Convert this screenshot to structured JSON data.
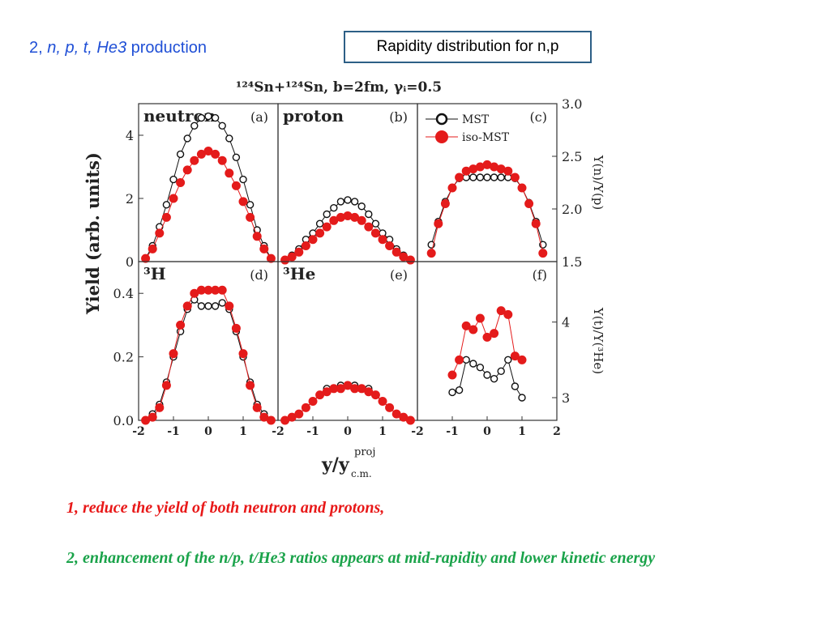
{
  "slide": {
    "title_parts": [
      {
        "text": "2, ",
        "italic": false
      },
      {
        "text": "n, p, t, He3",
        "italic": true
      },
      {
        "text": " production",
        "italic": false
      }
    ],
    "boxed_title": "Rapidity distribution for n,p",
    "notes": [
      "1,  reduce the yield of both neutron and protons,",
      "2,  enhancement of the n/p, t/He3 ratios appears at mid-rapidity and lower kinetic energy"
    ]
  },
  "figure": {
    "header": "¹²⁴Sn+¹²⁴Sn, b=2fm, γᵢ=0.5",
    "ylabel": "Yield (arb. units)",
    "xlabel": "y/y",
    "xlabel_sup": "proj",
    "xlabel_sub": "c.m.",
    "legend": [
      {
        "label": "MST",
        "style": "open"
      },
      {
        "label": "iso-MST",
        "style": "filled"
      }
    ],
    "colors": {
      "open": "#111111",
      "filled": "#e41b1b"
    }
  },
  "chart_data": [
    {
      "type": "scatter",
      "panel": "(a)",
      "name": "neutron",
      "xlim": [
        -2,
        2
      ],
      "ylim": [
        0,
        5
      ],
      "yticks": [
        0,
        2,
        4
      ],
      "ytick_labels": [
        "0",
        "2",
        "4"
      ],
      "axis_side": "left",
      "x": [
        -1.8,
        -1.6,
        -1.4,
        -1.2,
        -1.0,
        -0.8,
        -0.6,
        -0.4,
        -0.2,
        0.0,
        0.2,
        0.4,
        0.6,
        0.8,
        1.0,
        1.2,
        1.4,
        1.6,
        1.8
      ],
      "series": [
        {
          "name": "MST",
          "style": "open",
          "values": [
            0.1,
            0.5,
            1.1,
            1.8,
            2.6,
            3.4,
            3.9,
            4.3,
            4.55,
            4.6,
            4.55,
            4.3,
            3.9,
            3.3,
            2.6,
            1.8,
            1.0,
            0.5,
            0.1
          ]
        },
        {
          "name": "iso-MST",
          "style": "filled",
          "values": [
            0.1,
            0.4,
            0.9,
            1.4,
            2.0,
            2.5,
            2.9,
            3.2,
            3.4,
            3.5,
            3.4,
            3.2,
            2.8,
            2.4,
            1.9,
            1.4,
            0.8,
            0.4,
            0.1
          ]
        }
      ]
    },
    {
      "type": "scatter",
      "panel": "(b)",
      "name": "proton",
      "xlim": [
        -2,
        2
      ],
      "ylim": [
        0,
        5
      ],
      "axis_side": "none",
      "x": [
        -1.8,
        -1.6,
        -1.4,
        -1.2,
        -1.0,
        -0.8,
        -0.6,
        -0.4,
        -0.2,
        0.0,
        0.2,
        0.4,
        0.6,
        0.8,
        1.0,
        1.2,
        1.4,
        1.6,
        1.8
      ],
      "series": [
        {
          "name": "MST",
          "style": "open",
          "values": [
            0.05,
            0.2,
            0.4,
            0.7,
            0.9,
            1.2,
            1.5,
            1.7,
            1.9,
            1.95,
            1.9,
            1.75,
            1.5,
            1.2,
            0.9,
            0.7,
            0.4,
            0.2,
            0.05
          ]
        },
        {
          "name": "iso-MST",
          "style": "filled",
          "values": [
            0.05,
            0.15,
            0.3,
            0.5,
            0.7,
            0.9,
            1.1,
            1.3,
            1.4,
            1.45,
            1.4,
            1.3,
            1.1,
            0.9,
            0.7,
            0.5,
            0.3,
            0.15,
            0.05
          ]
        }
      ]
    },
    {
      "type": "scatter",
      "panel": "(c)",
      "xlim": [
        -2,
        2
      ],
      "ylim": [
        1.5,
        3.0
      ],
      "yticks": [
        1.5,
        2.0,
        2.5,
        3.0
      ],
      "ytick_labels": [
        "1.5",
        "2.0",
        "2.5",
        "3.0"
      ],
      "axis_side": "right",
      "ylabel": "Y(n)/Y(p)",
      "x": [
        -1.6,
        -1.4,
        -1.2,
        -1.0,
        -0.8,
        -0.6,
        -0.4,
        -0.2,
        0.0,
        0.2,
        0.4,
        0.6,
        0.8,
        1.0,
        1.2,
        1.4,
        1.6
      ],
      "series": [
        {
          "name": "MST",
          "style": "open",
          "values": [
            1.66,
            1.88,
            2.07,
            2.2,
            2.29,
            2.3,
            2.3,
            2.3,
            2.3,
            2.3,
            2.3,
            2.3,
            2.29,
            2.2,
            2.06,
            1.88,
            1.66
          ]
        },
        {
          "name": "iso-MST",
          "style": "filled",
          "values": [
            1.58,
            1.86,
            2.05,
            2.2,
            2.3,
            2.36,
            2.38,
            2.4,
            2.42,
            2.4,
            2.38,
            2.36,
            2.3,
            2.2,
            2.05,
            1.86,
            1.58
          ]
        }
      ]
    },
    {
      "type": "scatter",
      "panel": "(d)",
      "name": "³H",
      "xlim": [
        -2,
        2
      ],
      "ylim": [
        0,
        0.5
      ],
      "yticks": [
        0.0,
        0.2,
        0.4
      ],
      "ytick_labels": [
        "0.0",
        "0.2",
        "0.4"
      ],
      "axis_side": "left",
      "xticks": [
        -2,
        -1,
        0,
        1
      ],
      "xtick_labels": [
        "-2",
        "-1",
        "0",
        "1"
      ],
      "x": [
        -1.8,
        -1.6,
        -1.4,
        -1.2,
        -1.0,
        -0.8,
        -0.6,
        -0.4,
        -0.2,
        0.0,
        0.2,
        0.4,
        0.6,
        0.8,
        1.0,
        1.2,
        1.4,
        1.6,
        1.8
      ],
      "series": [
        {
          "name": "MST",
          "style": "open",
          "values": [
            0.0,
            0.02,
            0.05,
            0.12,
            0.2,
            0.28,
            0.35,
            0.38,
            0.36,
            0.36,
            0.36,
            0.37,
            0.35,
            0.28,
            0.2,
            0.12,
            0.05,
            0.02,
            0.0
          ]
        },
        {
          "name": "iso-MST",
          "style": "filled",
          "values": [
            0.0,
            0.01,
            0.04,
            0.11,
            0.21,
            0.3,
            0.36,
            0.4,
            0.41,
            0.41,
            0.41,
            0.41,
            0.36,
            0.29,
            0.21,
            0.11,
            0.04,
            0.01,
            0.0
          ]
        }
      ]
    },
    {
      "type": "scatter",
      "panel": "(e)",
      "name": "³He",
      "xlim": [
        -2,
        2
      ],
      "ylim": [
        0,
        0.5
      ],
      "axis_side": "none",
      "xticks": [
        -2,
        -1,
        0,
        1
      ],
      "xtick_labels": [
        "-2",
        "-1",
        "0",
        "1"
      ],
      "x": [
        -1.8,
        -1.6,
        -1.4,
        -1.2,
        -1.0,
        -0.8,
        -0.6,
        -0.4,
        -0.2,
        0.0,
        0.2,
        0.4,
        0.6,
        0.8,
        1.0,
        1.2,
        1.4,
        1.6,
        1.8
      ],
      "series": [
        {
          "name": "MST",
          "style": "open",
          "values": [
            0.0,
            0.01,
            0.02,
            0.04,
            0.06,
            0.08,
            0.1,
            0.1,
            0.11,
            0.11,
            0.11,
            0.1,
            0.1,
            0.08,
            0.06,
            0.04,
            0.02,
            0.01,
            0.0
          ]
        },
        {
          "name": "iso-MST",
          "style": "filled",
          "values": [
            0.0,
            0.01,
            0.02,
            0.04,
            0.06,
            0.08,
            0.09,
            0.1,
            0.1,
            0.11,
            0.1,
            0.1,
            0.09,
            0.08,
            0.06,
            0.04,
            0.02,
            0.01,
            0.0
          ]
        }
      ]
    },
    {
      "type": "scatter",
      "panel": "(f)",
      "xlim": [
        -2,
        2
      ],
      "ylim": [
        2.7,
        4.8
      ],
      "yticks": [
        3,
        4
      ],
      "ytick_labels": [
        "3",
        "4"
      ],
      "axis_side": "right",
      "ylabel": "Y(t)/Y(³He)",
      "xticks": [
        -2,
        -1,
        0,
        1,
        2
      ],
      "xtick_labels": [
        "-2",
        "-1",
        "0",
        "1",
        "2"
      ],
      "x": [
        -1.0,
        -0.8,
        -0.6,
        -0.4,
        -0.2,
        0.0,
        0.2,
        0.4,
        0.6,
        0.8,
        1.0
      ],
      "series": [
        {
          "name": "MST",
          "style": "open",
          "values": [
            3.07,
            3.1,
            3.5,
            3.45,
            3.4,
            3.3,
            3.25,
            3.35,
            3.5,
            3.15,
            3.0
          ]
        },
        {
          "name": "iso-MST",
          "style": "filled",
          "values": [
            3.3,
            3.5,
            3.95,
            3.9,
            4.05,
            3.8,
            3.85,
            4.15,
            4.1,
            3.55,
            3.5
          ]
        }
      ]
    }
  ]
}
